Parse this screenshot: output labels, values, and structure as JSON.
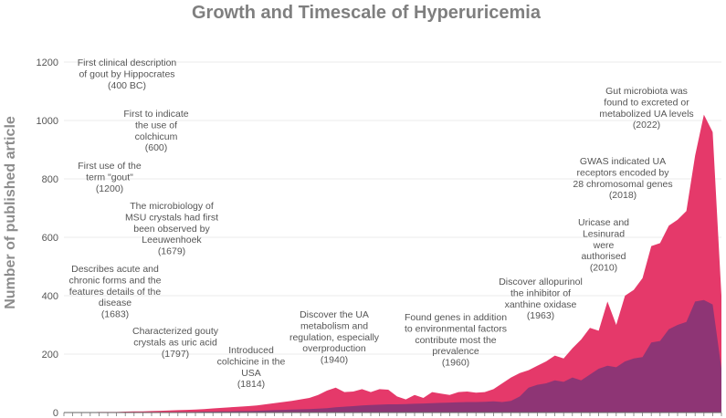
{
  "chart_data": {
    "type": "area",
    "title": "Growth and Timescale of Hyperuricemia",
    "ylabel": "Number of published article",
    "xlabel": "",
    "ylim": [
      0,
      1200
    ],
    "yticks": [
      0,
      200,
      400,
      600,
      800,
      1000,
      1200
    ],
    "grid": true,
    "colors": {
      "outer": "#e5396a",
      "inner": "#8e3575"
    },
    "series": [
      {
        "values": [
          0,
          1,
          1,
          1,
          2,
          2,
          2,
          3,
          4,
          4,
          5,
          6,
          7,
          8,
          9,
          10,
          12,
          14,
          16,
          18,
          20,
          22,
          24,
          28,
          32,
          36,
          40,
          45,
          50,
          60,
          75,
          85,
          70,
          72,
          80,
          70,
          80,
          78,
          55,
          45,
          60,
          50,
          70,
          65,
          60,
          70,
          72,
          68,
          70,
          80,
          100,
          120,
          135,
          145,
          160,
          175,
          195,
          185,
          220,
          250,
          290,
          280,
          380,
          300,
          400,
          420,
          460,
          570,
          580,
          640,
          660,
          690,
          880,
          1020,
          960,
          400
        ]
      },
      {
        "values": [
          0,
          0,
          0,
          0,
          0,
          0,
          0,
          0,
          0,
          1,
          1,
          1,
          1,
          2,
          2,
          2,
          3,
          3,
          4,
          4,
          5,
          5,
          6,
          7,
          8,
          9,
          10,
          11,
          12,
          13,
          15,
          18,
          20,
          22,
          24,
          26,
          27,
          28,
          28,
          29,
          30,
          31,
          32,
          33,
          34,
          35,
          36,
          36,
          37,
          38,
          36,
          40,
          55,
          85,
          95,
          100,
          110,
          105,
          120,
          110,
          130,
          150,
          160,
          155,
          175,
          185,
          190,
          240,
          245,
          285,
          300,
          310,
          380,
          385,
          370,
          150
        ]
      }
    ],
    "annotations": [
      {
        "lines": [
          "First clinical description",
          "of gout by Hippocrates",
          "(400 BC)"
        ]
      },
      {
        "lines": [
          "First to indicate",
          "the use of",
          "colchicum",
          "(600)"
        ]
      },
      {
        "lines": [
          "First use of the",
          "term \"gout\"",
          "(1200)"
        ]
      },
      {
        "lines": [
          "The microbiology of",
          "MSU crystals had first",
          "been observed by",
          "Leeuwenhoek",
          "(1679)"
        ]
      },
      {
        "lines": [
          "Describes acute and",
          "chronic forms and the",
          "features details of the",
          "disease",
          "(1683)"
        ]
      },
      {
        "lines": [
          "Characterized gouty",
          "crystals as uric acid",
          "(1797)"
        ]
      },
      {
        "lines": [
          "Introduced",
          "colchicine in the",
          "USA",
          "(1814)"
        ]
      },
      {
        "lines": [
          "Discover the UA",
          "metabolism and",
          "regulation, especially",
          "overproduction",
          "(1940)"
        ]
      },
      {
        "lines": [
          "Found genes in addition",
          "to environmental factors",
          "contribute most the",
          "prevalence",
          "(1960)"
        ]
      },
      {
        "lines": [
          "Discover allopurinol",
          "the inhibitor of",
          "xanthine oxidase",
          "(1963)"
        ]
      },
      {
        "lines": [
          "Uricase and",
          "Lesinurad",
          "were",
          "authorised",
          "(2010)"
        ]
      },
      {
        "lines": [
          "GWAS indicated UA",
          "receptors encoded by",
          "28 chromosomal genes",
          "(2018)"
        ]
      },
      {
        "lines": [
          "Gut microbiota was",
          "found to excreted or",
          "metabolized UA levels",
          "(2022)"
        ]
      }
    ]
  }
}
